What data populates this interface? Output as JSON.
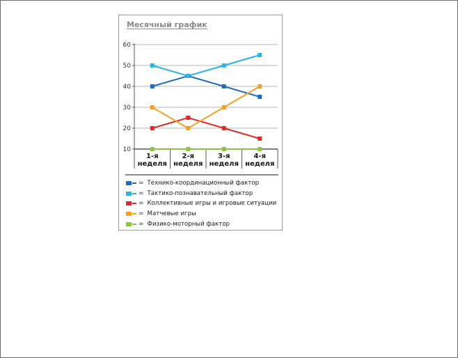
{
  "chart_data": {
    "type": "line",
    "title": "Месячный график",
    "categories": [
      "1-я неделя",
      "2-я неделя",
      "3-я неделя",
      "4-я неделя"
    ],
    "category_lines": [
      [
        "1-я",
        "неделя"
      ],
      [
        "2-я",
        "неделя"
      ],
      [
        "3-я",
        "неделя"
      ],
      [
        "4-я",
        "неделя"
      ]
    ],
    "ylim": [
      10,
      60
    ],
    "yticks": [
      10,
      20,
      30,
      40,
      50,
      60
    ],
    "grid": true,
    "legend_position": "bottom",
    "series": [
      {
        "name": "Технико-координационный фактор",
        "color": "#1f6db5",
        "values": [
          40,
          45,
          40,
          35
        ]
      },
      {
        "name": "Тактико-познавательный фактор",
        "color": "#2ab3e6",
        "values": [
          50,
          45,
          50,
          55
        ]
      },
      {
        "name": "Коллективные игры и игровые ситуации",
        "color": "#e02a2a",
        "values": [
          20,
          25,
          20,
          15
        ]
      },
      {
        "name": "Матчевые игры",
        "color": "#f5a023",
        "values": [
          30,
          20,
          30,
          40
        ]
      },
      {
        "name": "Физико-моторный фактор",
        "color": "#8cc63f",
        "values": [
          10,
          10,
          10,
          10
        ]
      }
    ],
    "legend_equals": "="
  }
}
